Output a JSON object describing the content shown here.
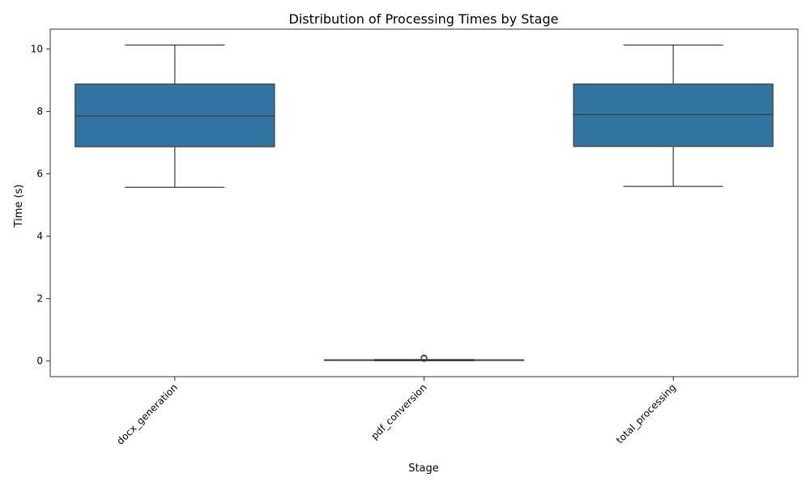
{
  "chart_data": {
    "type": "box",
    "title": "Distribution of Processing Times by Stage",
    "xlabel": "Stage",
    "ylabel": "Time (s)",
    "categories": [
      "docx_generation",
      "pdf_conversion",
      "total_processing"
    ],
    "boxes": [
      {
        "category": "docx_generation",
        "whisker_low": 5.57,
        "q1": 6.87,
        "median": 7.86,
        "q3": 8.88,
        "whisker_high": 10.13,
        "outliers": []
      },
      {
        "category": "pdf_conversion",
        "whisker_low": 0.01,
        "q1": 0.02,
        "median": 0.03,
        "q3": 0.04,
        "whisker_high": 0.05,
        "outliers": [
          0.08,
          0.09,
          0.1
        ]
      },
      {
        "category": "total_processing",
        "whisker_low": 5.6,
        "q1": 6.88,
        "median": 7.9,
        "q3": 8.88,
        "whisker_high": 10.13,
        "outliers": []
      }
    ],
    "ylim": [
      -0.5,
      10.64
    ],
    "yticks": [
      0,
      2,
      4,
      6,
      8,
      10
    ],
    "grid": false,
    "legend": "none",
    "box_color": "#3274a1",
    "line_color": "#3d3d3d"
  }
}
